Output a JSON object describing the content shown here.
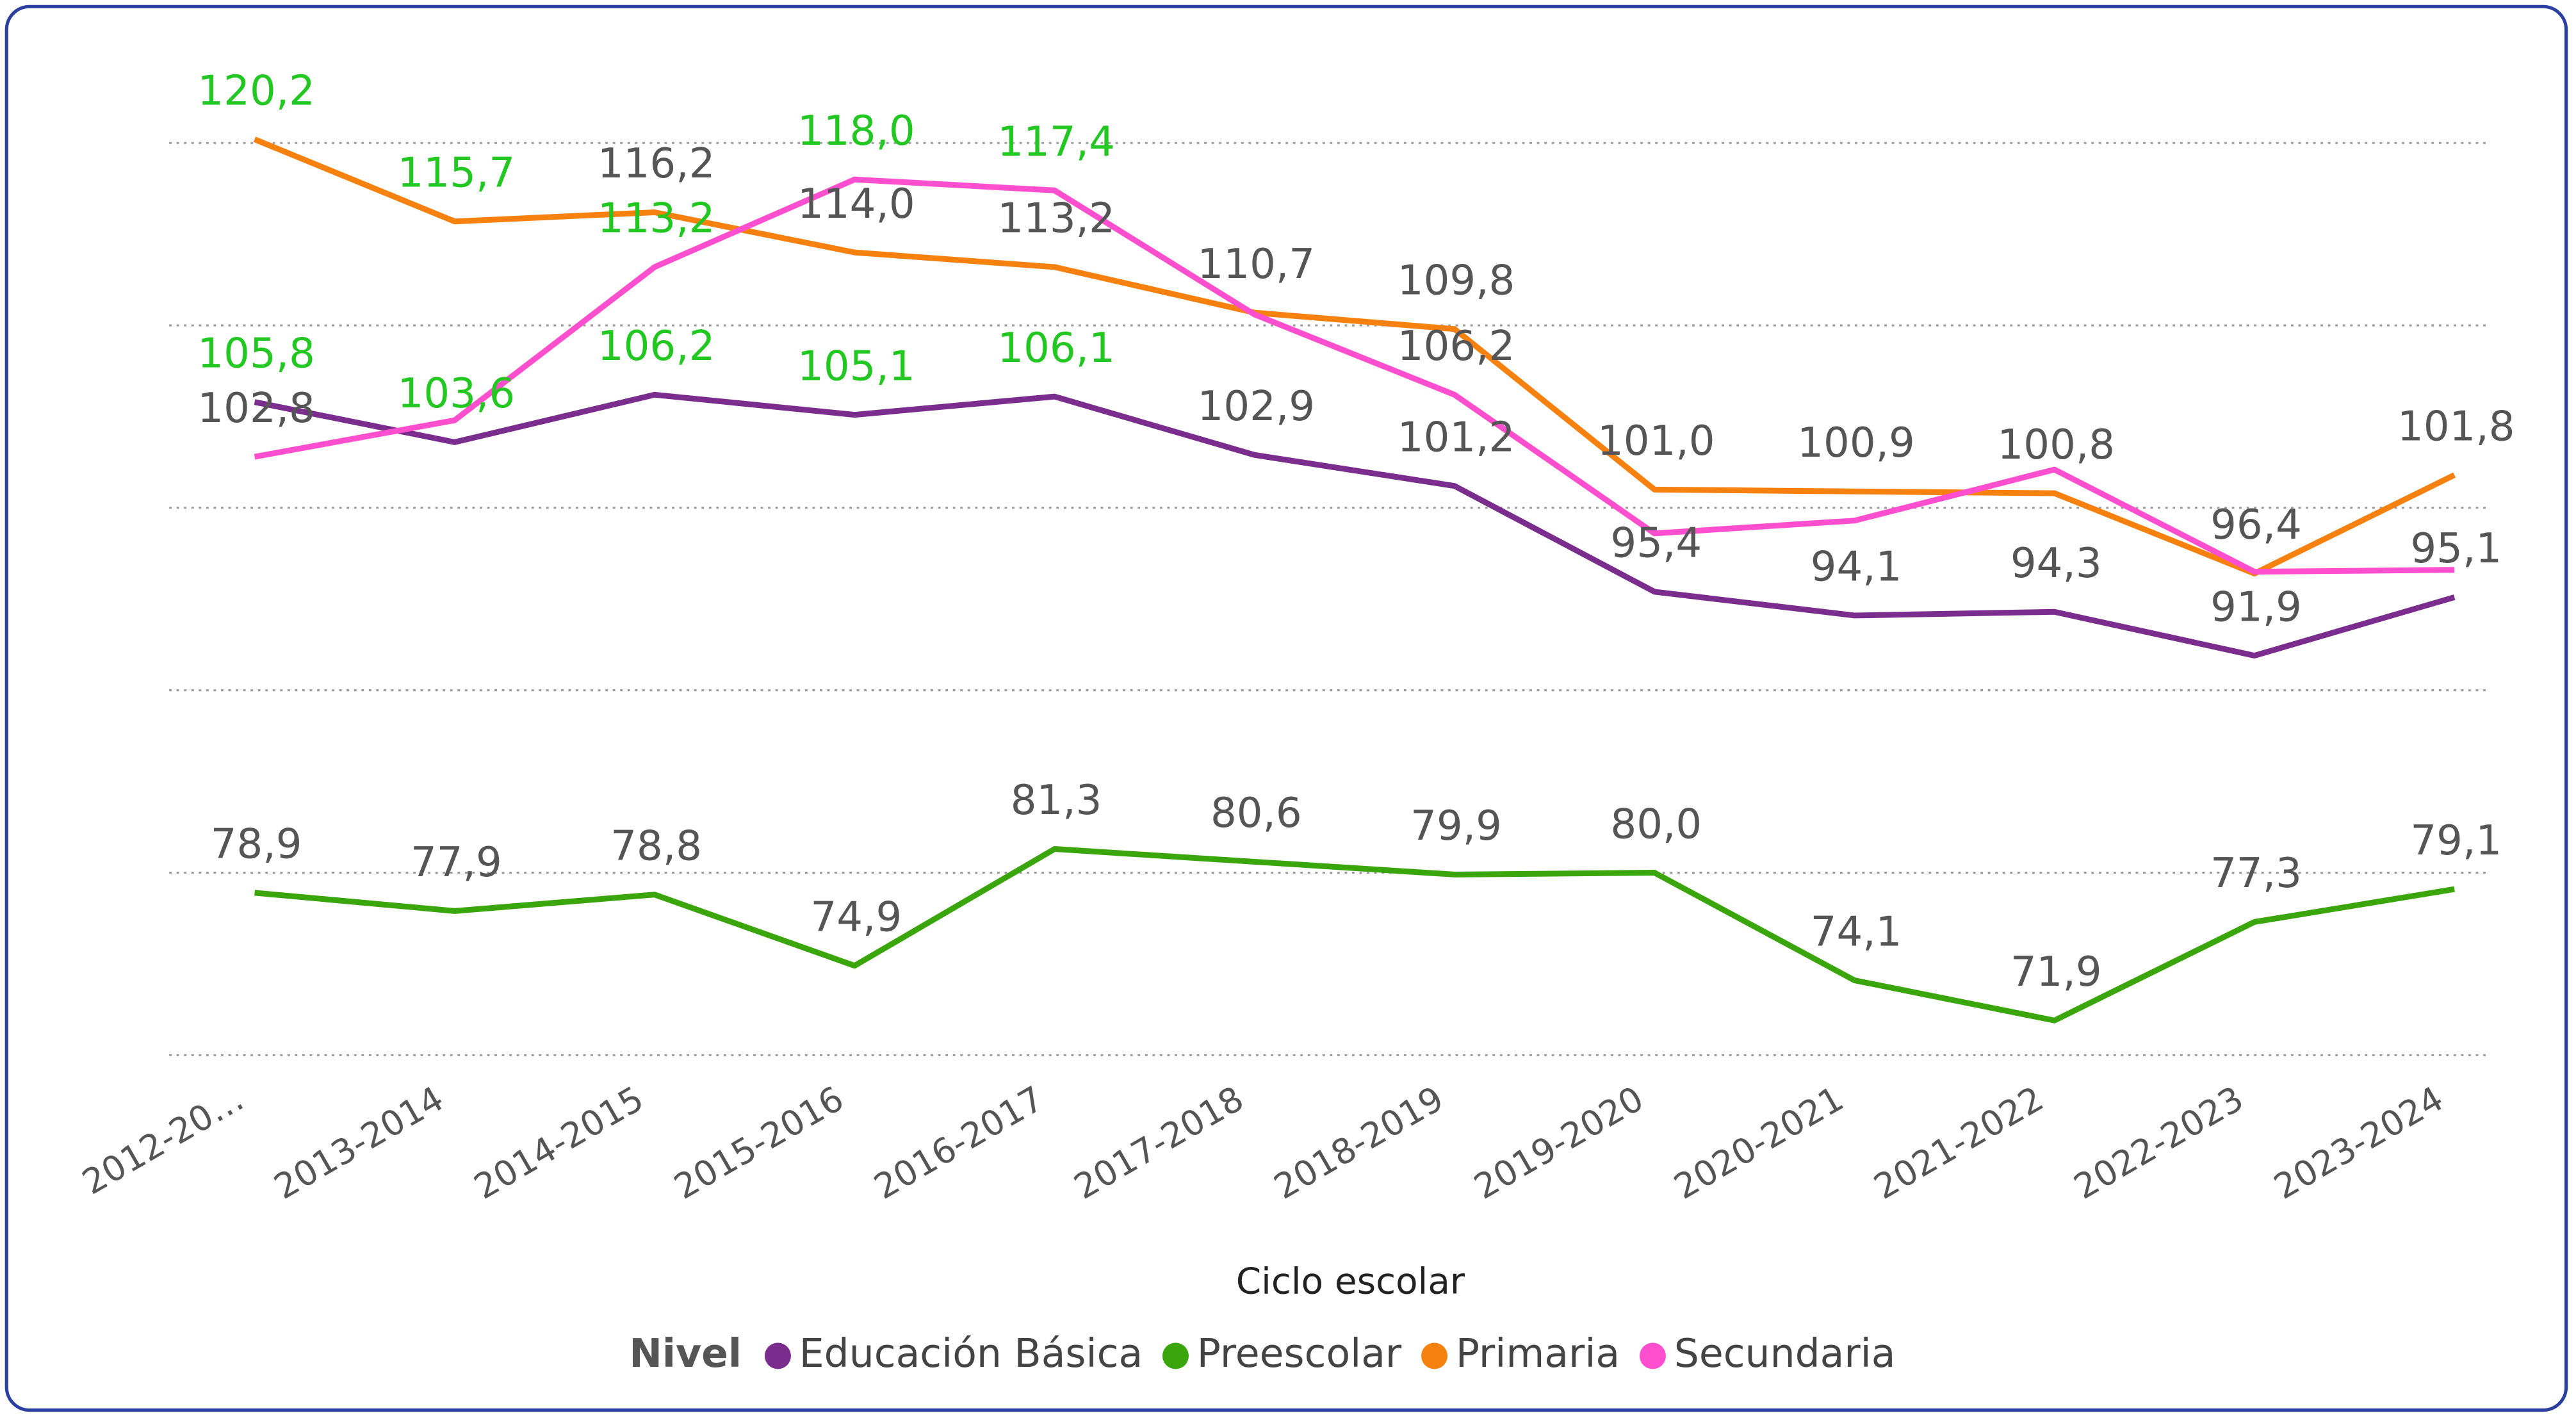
{
  "chart_data": {
    "type": "line",
    "x_label": "Ciclo escolar",
    "legend_title": "Nivel",
    "legend": "bottom",
    "categories": [
      "2012-20…",
      "2013-2014",
      "2014-2015",
      "2015-2016",
      "2016-2017",
      "2017-2018",
      "2018-2019",
      "2019-2020",
      "2020-2021",
      "2021-2022",
      "2022-2023",
      "2023-2024"
    ],
    "series": [
      {
        "name": "Educación Básica",
        "color": "#7b2d8e",
        "values": [
          105.8,
          103.6,
          106.2,
          105.1,
          106.1,
          102.9,
          101.2,
          95.4,
          94.1,
          94.3,
          91.9,
          95.1
        ],
        "value_labels": [
          "105,8",
          "103,6",
          "106,2",
          "105,1",
          "106,1",
          "102,9",
          "101,2",
          "95,4",
          "94,1",
          "94,3",
          "91,9",
          "95,1"
        ],
        "value_label_colors": [
          "#22c722",
          "#22c722",
          "#22c722",
          "#22c722",
          "#22c722",
          "#555555",
          "#555555",
          "#555555",
          "#555555",
          "#555555",
          "#555555",
          "#555555"
        ]
      },
      {
        "name": "Preescolar",
        "color": "#3aa60c",
        "values": [
          78.9,
          77.9,
          78.8,
          74.9,
          81.3,
          80.6,
          79.9,
          80.0,
          74.1,
          71.9,
          77.3,
          79.1
        ],
        "value_labels": [
          "78,9",
          "77,9",
          "78,8",
          "74,9",
          "81,3",
          "80,6",
          "79,9",
          "80,0",
          "74,1",
          "71,9",
          "77,3",
          "79,1"
        ],
        "value_label_colors": [
          "#555555",
          "#555555",
          "#555555",
          "#555555",
          "#555555",
          "#555555",
          "#555555",
          "#555555",
          "#555555",
          "#555555",
          "#555555",
          "#555555"
        ]
      },
      {
        "name": "Primaria",
        "color": "#f7810f",
        "values": [
          120.2,
          115.7,
          116.2,
          114.0,
          113.2,
          110.7,
          109.8,
          101.0,
          100.9,
          100.8,
          96.4,
          101.8
        ],
        "value_labels": [
          "120,2",
          "115,7",
          "116,2",
          "114,0",
          "113,2",
          "110,7",
          "109,8",
          "101,0",
          "100,9",
          "100,8",
          "96,4",
          "101,8"
        ],
        "value_label_colors": [
          "#22c722",
          "#22c722",
          "#555555",
          "#555555",
          "#555555",
          "#555555",
          "#555555",
          "#555555",
          "#555555",
          "#555555",
          "#555555",
          "#555555"
        ]
      },
      {
        "name": "Secundaria",
        "color": "#ff4fcf",
        "values": [
          102.8,
          104.8,
          113.2,
          118.0,
          117.4,
          110.6,
          106.2,
          98.6,
          99.3,
          102.1,
          96.5,
          96.6
        ],
        "value_labels": [
          "102,8",
          null,
          "113,2",
          "118,0",
          "117,4",
          null,
          "106,2",
          null,
          null,
          null,
          null,
          null
        ],
        "value_label_colors": [
          "#555555",
          "#555555",
          "#22c722",
          "#22c722",
          "#22c722",
          "#555555",
          "#555555",
          "#555555",
          "#555555",
          "#555555",
          "#555555",
          "#555555"
        ]
      }
    ],
    "ylim": [
      69,
      125
    ],
    "yticks": [
      70,
      80,
      90,
      100,
      110,
      120
    ],
    "grid": true
  }
}
